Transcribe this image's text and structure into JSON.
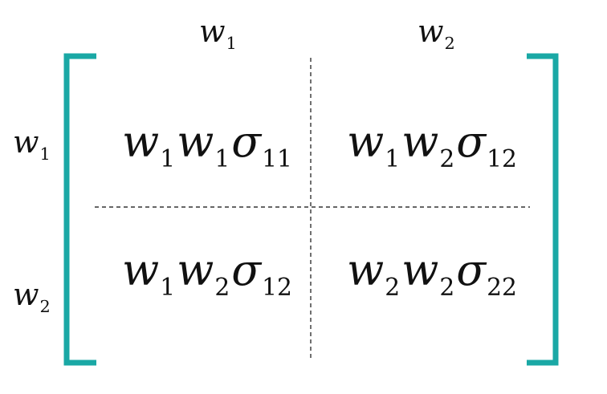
{
  "colors": {
    "bracket": "#1aa8a5",
    "divider": "#333333",
    "text": "#111111"
  },
  "column_headers": [
    {
      "var": "w",
      "sub": "1"
    },
    {
      "var": "w",
      "sub": "2"
    }
  ],
  "row_headers": [
    {
      "var": "w",
      "sub": "1"
    },
    {
      "var": "w",
      "sub": "2"
    }
  ],
  "cells": [
    {
      "w_a": "w",
      "sub_a": "1",
      "w_b": "w",
      "sub_b": "1",
      "sigma": "σ",
      "sigma_sub": "11"
    },
    {
      "w_a": "w",
      "sub_a": "1",
      "w_b": "w",
      "sub_b": "2",
      "sigma": "σ",
      "sigma_sub": "12"
    },
    {
      "w_a": "w",
      "sub_a": "1",
      "w_b": "w",
      "sub_b": "2",
      "sigma": "σ",
      "sigma_sub": "12"
    },
    {
      "w_a": "w",
      "sub_a": "2",
      "w_b": "w",
      "sub_b": "2",
      "sigma": "σ",
      "sigma_sub": "22"
    }
  ]
}
